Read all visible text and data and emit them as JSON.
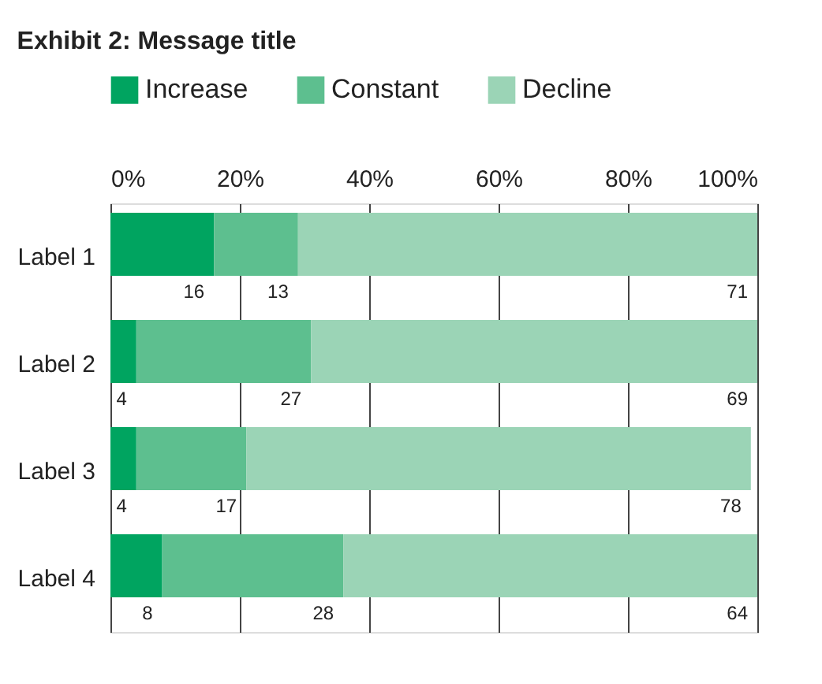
{
  "chart_data": {
    "type": "bar",
    "orientation": "horizontal",
    "stacked": true,
    "title": "Exhibit 2: Message title",
    "categories": [
      "Label 1",
      "Label 2",
      "Label 3",
      "Label 4"
    ],
    "series": [
      {
        "name": "Increase",
        "color": "#00a460",
        "values": [
          16,
          4,
          4,
          8
        ]
      },
      {
        "name": "Constant",
        "color": "#5dbf8f",
        "values": [
          13,
          27,
          17,
          28
        ]
      },
      {
        "name": "Decline",
        "color": "#9bd4b6",
        "values": [
          71,
          69,
          78,
          64
        ]
      }
    ],
    "xlim": [
      0,
      100
    ],
    "xticks": [
      {
        "value": 0,
        "label": "0%"
      },
      {
        "value": 20,
        "label": "20%"
      },
      {
        "value": 40,
        "label": "40%"
      },
      {
        "value": 60,
        "label": "60%"
      },
      {
        "value": 80,
        "label": "80%"
      },
      {
        "value": 100,
        "label": "100%"
      }
    ],
    "grid": "x",
    "legend": "top left",
    "data_labels": true
  }
}
